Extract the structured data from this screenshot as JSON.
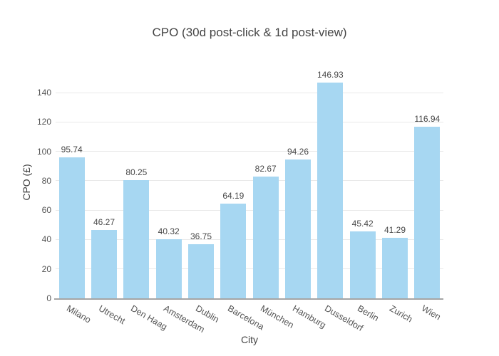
{
  "chart_data": {
    "type": "bar",
    "title": "CPO (30d post-click & 1d post-view)",
    "xlabel": "City",
    "ylabel": "CPO (£)",
    "categories": [
      "Milano",
      "Utrecht",
      "Den Haag",
      "Amsterdam",
      "Dublin",
      "Barcelona",
      "München",
      "Hamburg",
      "Dusseldorf",
      "Berlin",
      "Zurich",
      "Wien"
    ],
    "values": [
      95.74,
      46.27,
      80.25,
      40.32,
      36.75,
      64.19,
      82.67,
      94.26,
      146.93,
      45.42,
      41.29,
      116.94
    ],
    "value_labels": [
      "95.74",
      "46.27",
      "80.25",
      "40.32",
      "36.75",
      "64.19",
      "82.67",
      "94.26",
      "146.93",
      "45.42",
      "41.29",
      "116.94"
    ],
    "yticks": [
      0,
      20,
      40,
      60,
      80,
      100,
      120,
      140
    ],
    "ylim": [
      0,
      158
    ],
    "grid": true,
    "legend": "none",
    "bar_color": "#a7d7f2",
    "grid_color": "#e9e9e9",
    "axis_line_color": "#a5a5a5",
    "text_color": "#484848"
  }
}
